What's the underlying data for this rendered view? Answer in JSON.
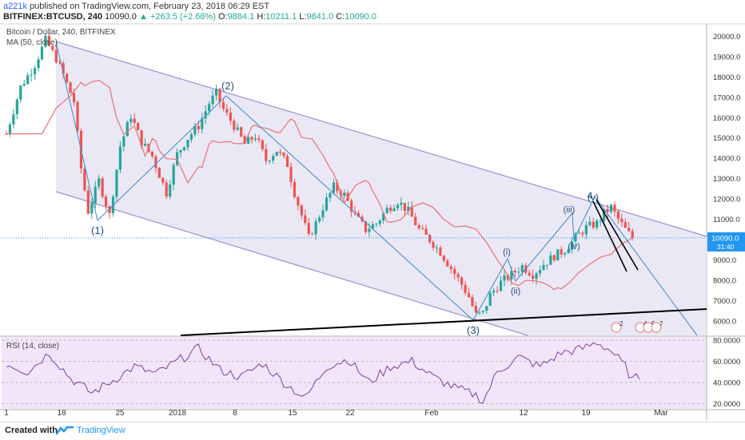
{
  "header": {
    "username": "a221k",
    "published_text": "published on TradingView.com, February 23, 2018 06:29 EST",
    "symbol": "BITFINEX:BTCUSD, 240",
    "last": "10090.0",
    "change": "+263.5 (+2.68%)",
    "o_label": "O:",
    "o_value": "9884.1",
    "h_label": "H:",
    "h_value": "10211.1",
    "l_label": "L:",
    "l_value": "9841.0",
    "c_label": "C:",
    "c_value": "10090.0"
  },
  "watermark": {
    "title": "Bitcoin / Dollar, 240, BITFINEX",
    "ma_label": "MA (50, close)"
  },
  "rsi_label": "RSI (14, close)",
  "footer": {
    "created_with": "Created with",
    "brand": "TradingView"
  },
  "colors": {
    "up": "#26a69a",
    "down": "#ef5350",
    "channel_fill": "#e8e4f3",
    "channel_line": "#9f8fd0",
    "ma": "#e57373",
    "wave": "#4a90c8",
    "rsi": "#7b3fa0",
    "rsi_band": "#f3e5f9",
    "price_tag": "#2196f3"
  },
  "chart_data": [
    {
      "type": "candlestick",
      "title": "Bitcoin / Dollar, 240, BITFINEX",
      "x_tick_labels": [
        "1",
        "18",
        "25",
        "2018",
        "8",
        "15",
        "22",
        "Feb",
        "12",
        "19",
        "Mar"
      ],
      "y_ticks": [
        "6000.0",
        "7000.0",
        "8000.0",
        "9000.0",
        "10000.0",
        "11000.0",
        "12000.0",
        "13000.0",
        "14000.0",
        "15000.0",
        "16000.0",
        "17000.0",
        "18000.0",
        "19000.0",
        "20000.0"
      ],
      "ylim": [
        5300,
        20600
      ],
      "last_price_label": "10090.0",
      "countdown": "31:40",
      "approx_close_path": [
        [
          0,
          15200
        ],
        [
          4,
          17500
        ],
        [
          8,
          18600
        ],
        [
          11,
          19800
        ],
        [
          14,
          18900
        ],
        [
          16,
          18100
        ],
        [
          19,
          16800
        ],
        [
          21,
          13500
        ],
        [
          23,
          11400
        ],
        [
          26,
          12900
        ],
        [
          29,
          11200
        ],
        [
          32,
          14600
        ],
        [
          35,
          16100
        ],
        [
          38,
          14800
        ],
        [
          41,
          14100
        ],
        [
          43,
          13200
        ],
        [
          45,
          12300
        ],
        [
          48,
          14200
        ],
        [
          51,
          15000
        ],
        [
          54,
          15600
        ],
        [
          57,
          16700
        ],
        [
          59,
          17200
        ],
        [
          61,
          16400
        ],
        [
          64,
          15600
        ],
        [
          67,
          14700
        ],
        [
          70,
          15100
        ],
        [
          73,
          13900
        ],
        [
          76,
          14400
        ],
        [
          79,
          13700
        ],
        [
          81,
          12300
        ],
        [
          83,
          11200
        ],
        [
          85,
          10100
        ],
        [
          87,
          10800
        ],
        [
          89,
          11600
        ],
        [
          92,
          12600
        ],
        [
          95,
          12200
        ],
        [
          98,
          11200
        ],
        [
          101,
          10500
        ],
        [
          104,
          10800
        ],
        [
          107,
          11500
        ],
        [
          110,
          11900
        ],
        [
          113,
          11400
        ],
        [
          116,
          10500
        ],
        [
          119,
          10000
        ],
        [
          122,
          9400
        ],
        [
          125,
          8600
        ],
        [
          128,
          7800
        ],
        [
          130,
          7200
        ],
        [
          132,
          6300
        ],
        [
          134,
          6400
        ],
        [
          136,
          7300
        ],
        [
          139,
          7900
        ],
        [
          142,
          8300
        ],
        [
          145,
          8700
        ],
        [
          148,
          8300
        ],
        [
          151,
          8800
        ],
        [
          154,
          9200
        ],
        [
          157,
          9500
        ],
        [
          160,
          10100
        ],
        [
          163,
          10600
        ],
        [
          166,
          10800
        ],
        [
          168,
          11300
        ],
        [
          170,
          11600
        ],
        [
          172,
          11000
        ],
        [
          174,
          10500
        ],
        [
          176,
          10090
        ]
      ],
      "ma_series_name": "MA (50, close)",
      "annotations": [
        "(1)",
        "(2)",
        "(3)",
        "(i)",
        "(ii)",
        "(iii)",
        "(iv)",
        "(v)",
        "4"
      ],
      "event_badges": [
        "2",
        "4",
        "5",
        "7"
      ]
    },
    {
      "type": "line",
      "title": "RSI (14, close)",
      "y_ticks": [
        "20.0000",
        "40.0000",
        "60.0000",
        "80.0000"
      ],
      "ylim": [
        15,
        83
      ],
      "approx_path": [
        [
          0,
          58
        ],
        [
          6,
          50
        ],
        [
          12,
          68
        ],
        [
          18,
          44
        ],
        [
          24,
          30
        ],
        [
          30,
          42
        ],
        [
          36,
          55
        ],
        [
          42,
          48
        ],
        [
          48,
          60
        ],
        [
          54,
          72
        ],
        [
          60,
          52
        ],
        [
          66,
          45
        ],
        [
          72,
          58
        ],
        [
          78,
          40
        ],
        [
          84,
          25
        ],
        [
          90,
          55
        ],
        [
          96,
          62
        ],
        [
          102,
          40
        ],
        [
          108,
          55
        ],
        [
          114,
          60
        ],
        [
          120,
          45
        ],
        [
          126,
          35
        ],
        [
          132,
          28
        ],
        [
          134,
          22
        ],
        [
          138,
          50
        ],
        [
          144,
          64
        ],
        [
          150,
          55
        ],
        [
          156,
          68
        ],
        [
          162,
          72
        ],
        [
          166,
          78
        ],
        [
          170,
          70
        ],
        [
          174,
          55
        ],
        [
          176,
          42
        ],
        [
          178,
          46
        ]
      ]
    }
  ]
}
